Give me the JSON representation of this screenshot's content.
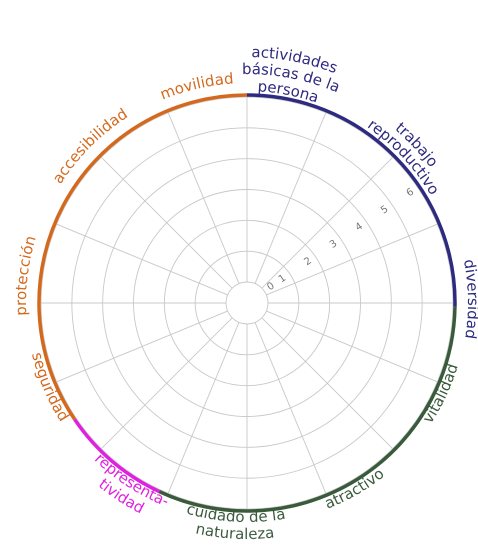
{
  "chart_data": {
    "type": "radar",
    "title": "",
    "axes": [],
    "rings": [
      0,
      1,
      2,
      3,
      4,
      5,
      6
    ],
    "rlim": [
      0,
      6
    ],
    "grid": true,
    "spoke_count": 16,
    "categories": [
      {
        "name": "actividades básicas de la persona",
        "lines": [
          "actividades",
          "básicas de la",
          "persona"
        ],
        "group": "blue"
      },
      {
        "name": "trabajo reproductivo",
        "lines": [
          "trabajo",
          "reproductivo"
        ],
        "group": "blue"
      },
      {
        "name": "diversidad",
        "lines": [
          "diversidad"
        ],
        "group": "blue"
      },
      {
        "name": "vitalidad",
        "lines": [
          "vitalidad"
        ],
        "group": "green"
      },
      {
        "name": "atractivo",
        "lines": [
          "atractivo"
        ],
        "group": "green"
      },
      {
        "name": "cuidado de la naturaleza",
        "lines": [
          "cuidado de la",
          "naturaleza"
        ],
        "group": "green"
      },
      {
        "name": "representa-tividad",
        "lines": [
          "representa-",
          "tividad"
        ],
        "group": "magenta"
      },
      {
        "name": "seguridad",
        "lines": [
          "seguridad"
        ],
        "group": "orange"
      },
      {
        "name": "protección",
        "lines": [
          "protección"
        ],
        "group": "orange"
      },
      {
        "name": "accesibilidad",
        "lines": [
          "accesibilidad"
        ],
        "group": "orange"
      },
      {
        "name": "movilidad",
        "lines": [
          "movilidad"
        ],
        "group": "orange"
      }
    ],
    "groups": [
      {
        "id": "blue",
        "color": "#2e2a7f"
      },
      {
        "id": "green",
        "color": "#3a5a3c"
      },
      {
        "id": "magenta",
        "color": "#e020e0"
      },
      {
        "id": "orange",
        "color": "#d4691e"
      }
    ]
  }
}
